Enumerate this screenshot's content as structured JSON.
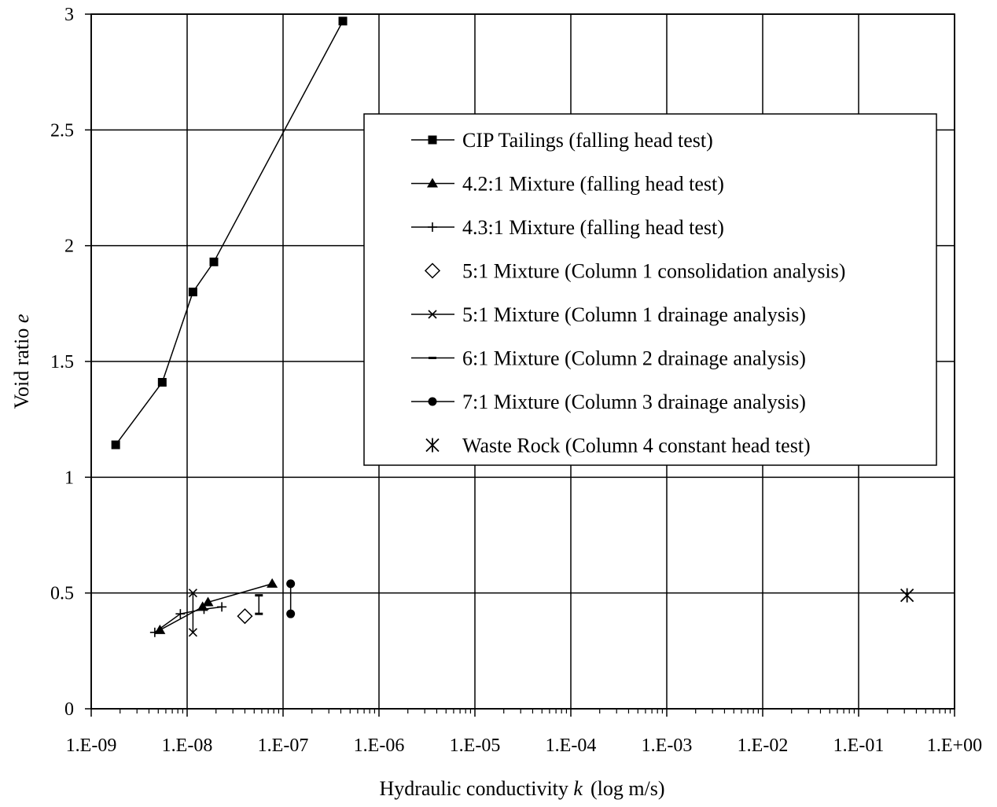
{
  "chart_data": {
    "type": "scatter",
    "title": "",
    "xlabel": "Hydraulic conductivity",
    "xlabel_symbol": "k",
    "xlabel_unit": "(log m/s)",
    "ylabel": "Void ratio",
    "ylabel_symbol": "e",
    "x_scale": "log",
    "xlim": [
      1e-09,
      1
    ],
    "ylim": [
      0,
      3
    ],
    "x_ticks": [
      1e-09,
      1e-08,
      1e-07,
      1e-06,
      1e-05,
      0.0001,
      0.001,
      0.01,
      0.1,
      1
    ],
    "x_tick_labels": [
      "1.E-09",
      "1.E-08",
      "1.E-07",
      "1.E-06",
      "1.E-05",
      "1.E-04",
      "1.E-03",
      "1.E-02",
      "1.E-01",
      "1.E+00"
    ],
    "y_ticks": [
      0,
      0.5,
      1,
      1.5,
      2,
      2.5,
      3
    ],
    "y_tick_labels": [
      "0",
      "0.5",
      "1",
      "1.5",
      "2",
      "2.5",
      "3"
    ],
    "grid": true,
    "legend_position": "top-right",
    "series": [
      {
        "name": "CIP Tailings (falling head test)",
        "marker": "square",
        "line": true,
        "x": [
          1.8e-09,
          5.5e-09,
          1.15e-08,
          1.9e-08,
          4.2e-07
        ],
        "y": [
          1.14,
          1.41,
          1.8,
          1.93,
          2.97
        ]
      },
      {
        "name": "4.2:1 Mixture (falling head test)",
        "marker": "triangle",
        "line": true,
        "x": [
          5.2e-09,
          1.45e-08,
          1.65e-08,
          7.7e-08
        ],
        "y": [
          0.34,
          0.44,
          0.46,
          0.54
        ]
      },
      {
        "name": "4.3:1 Mixture (falling head test)",
        "marker": "plus",
        "line": true,
        "x": [
          4.6e-09,
          8.5e-09,
          1.5e-08,
          2.3e-08
        ],
        "y": [
          0.33,
          0.41,
          0.43,
          0.44
        ]
      },
      {
        "name": "5:1 Mixture (Column 1 consolidation analysis)",
        "marker": "diamond",
        "line": false,
        "x": [
          4e-08
        ],
        "y": [
          0.4
        ]
      },
      {
        "name": "5:1 Mixture (Column 1 drainage analysis)",
        "marker": "x",
        "line": true,
        "x": [
          1.15e-08,
          1.15e-08
        ],
        "y": [
          0.5,
          0.33
        ]
      },
      {
        "name": "6:1 Mixture (Column 2 drainage analysis)",
        "marker": "dash",
        "line": true,
        "x": [
          5.6e-08,
          5.6e-08
        ],
        "y": [
          0.49,
          0.41
        ]
      },
      {
        "name": "7:1 Mixture (Column 3 drainage analysis)",
        "marker": "circle",
        "line": true,
        "x": [
          1.2e-07,
          1.2e-07
        ],
        "y": [
          0.54,
          0.41
        ]
      },
      {
        "name": "Waste Rock (Column 4 constant head test)",
        "marker": "asterisk",
        "line": false,
        "x": [
          0.32
        ],
        "y": [
          0.49
        ]
      }
    ]
  }
}
